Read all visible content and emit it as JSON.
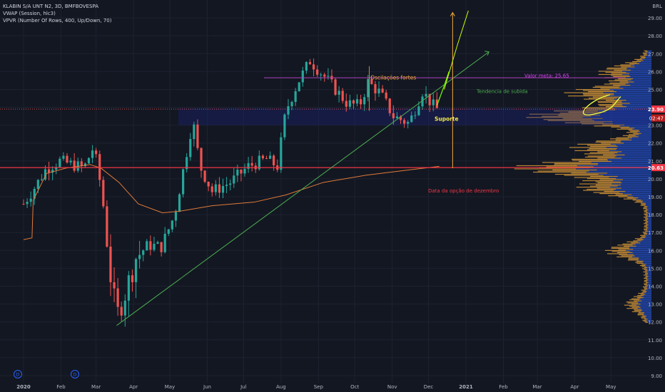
{
  "legend": {
    "title": "KLABIN S/A UNT N2, 3D, BMFBOVESPA",
    "vwap": "VWAP (Session, hlc3)",
    "vpvr": "VPVR (Number Of Rows, 400, Up/Down, 70)"
  },
  "currency": "BRL",
  "price_labels": {
    "current": "23.90",
    "countdown": "02:47",
    "level": "20.63"
  },
  "event_markers": [
    "D",
    "D"
  ],
  "annotations": {
    "oscillations": "Oscilações fortes",
    "support": "Suporte",
    "trend": "Tendencia de subida",
    "target": "Valor meta: 25.65",
    "option_date": "Data da opção de dezembro"
  },
  "colors": {
    "background": "#131722",
    "up": "#26a69a",
    "down": "#ef5350",
    "vwap": "#e07b39",
    "level_line": "#f23645",
    "trend_line": "#4caf50",
    "target_line": "#b03fbf",
    "vertical_line": "#f2a93b",
    "volume_up": "#2962ff",
    "volume_down": "#f2a93b"
  },
  "chart_data": {
    "type": "candlestick",
    "title": "KLABIN S/A UNT N2, 3D, BMFBOVESPA",
    "ylim": [
      8.6,
      30.0
    ],
    "y_ticks": [
      "9.00",
      "10.00",
      "11.00",
      "12.00",
      "13.00",
      "14.00",
      "15.00",
      "16.00",
      "17.00",
      "18.00",
      "19.00",
      "20.00",
      "21.00",
      "22.00",
      "23.00",
      "24.00",
      "25.00",
      "26.00",
      "27.00",
      "28.00",
      "29.00"
    ],
    "x_ticks": [
      "2020",
      "Feb",
      "Mar",
      "Apr",
      "May",
      "Jun",
      "Jul",
      "Aug",
      "Sep",
      "Oct",
      "Nov",
      "Dec",
      "2021",
      "Feb",
      "Mar",
      "Apr",
      "May"
    ],
    "close_path": [
      [
        "2020-01-01",
        18.6
      ],
      [
        "2020-01-10",
        19.5
      ],
      [
        "2020-01-20",
        20.6
      ],
      [
        "2020-01-31",
        21.0
      ],
      [
        "2020-02-10",
        20.8
      ],
      [
        "2020-02-20",
        20.6
      ],
      [
        "2020-02-28",
        21.8
      ],
      [
        "2020-03-06",
        19.2
      ],
      [
        "2020-03-12",
        15.0
      ],
      [
        "2020-03-18",
        12.3
      ],
      [
        "2020-03-25",
        13.6
      ],
      [
        "2020-04-03",
        15.6
      ],
      [
        "2020-04-13",
        16.3
      ],
      [
        "2020-04-24",
        16.2
      ],
      [
        "2020-05-05",
        18.0
      ],
      [
        "2020-05-15",
        21.5
      ],
      [
        "2020-05-20",
        23.3
      ],
      [
        "2020-05-26",
        20.7
      ],
      [
        "2020-06-05",
        19.3
      ],
      [
        "2020-06-20",
        19.8
      ],
      [
        "2020-07-05",
        20.7
      ],
      [
        "2020-07-20",
        21.1
      ],
      [
        "2020-07-29",
        20.7
      ],
      [
        "2020-08-05",
        23.8
      ],
      [
        "2020-08-15",
        25.4
      ],
      [
        "2020-08-25",
        26.6
      ],
      [
        "2020-09-05",
        25.8
      ],
      [
        "2020-09-15",
        25.0
      ],
      [
        "2020-09-25",
        24.2
      ],
      [
        "2020-10-05",
        24.1
      ],
      [
        "2020-10-12",
        25.4
      ],
      [
        "2020-10-22",
        24.8
      ],
      [
        "2020-11-02",
        23.5
      ],
      [
        "2020-11-15",
        23.1
      ],
      [
        "2020-11-26",
        24.9
      ],
      [
        "2020-12-07",
        23.9
      ]
    ],
    "vwap_path": [
      [
        "2020-01-01",
        16.6
      ],
      [
        "2020-01-08",
        16.7
      ],
      [
        "2020-01-09",
        18.8
      ],
      [
        "2020-01-20",
        20.3
      ],
      [
        "2020-02-05",
        20.6
      ],
      [
        "2020-02-25",
        20.8
      ],
      [
        "2020-03-05",
        20.6
      ],
      [
        "2020-03-20",
        19.8
      ],
      [
        "2020-04-05",
        18.6
      ],
      [
        "2020-04-25",
        18.1
      ],
      [
        "2020-05-10",
        18.2
      ],
      [
        "2020-06-05",
        18.5
      ],
      [
        "2020-07-10",
        18.7
      ],
      [
        "2020-08-05",
        19.1
      ],
      [
        "2020-09-05",
        19.8
      ],
      [
        "2020-10-10",
        20.2
      ],
      [
        "2020-11-15",
        20.5
      ],
      [
        "2020-12-10",
        20.7
      ]
    ],
    "horizontal_levels": [
      {
        "price": 20.63
      },
      {
        "price": 25.65,
        "label": "Valor meta: 25.65"
      },
      {
        "price": 23.9
      }
    ],
    "trend_line": {
      "from": [
        "2020-03-18",
        11.8
      ],
      "to": [
        "2021-01-20",
        27.1
      ],
      "label": "Tendencia de subida"
    },
    "vertical_line": {
      "date": "2020-12-21",
      "from": 20.6,
      "to": 29.3,
      "label": "Data da opção de dezembro"
    },
    "volume_profile": {
      "peaks": [
        {
          "price": 20.63,
          "strength": 1.0
        },
        {
          "price": 23.5,
          "strength": 0.92
        },
        {
          "price": 24.8,
          "strength": 0.6
        },
        {
          "price": 21.8,
          "strength": 0.55
        },
        {
          "price": 19.5,
          "strength": 0.5
        },
        {
          "price": 26.0,
          "strength": 0.35
        },
        {
          "price": 16.0,
          "strength": 0.3
        },
        {
          "price": 13.0,
          "strength": 0.15
        }
      ]
    }
  }
}
